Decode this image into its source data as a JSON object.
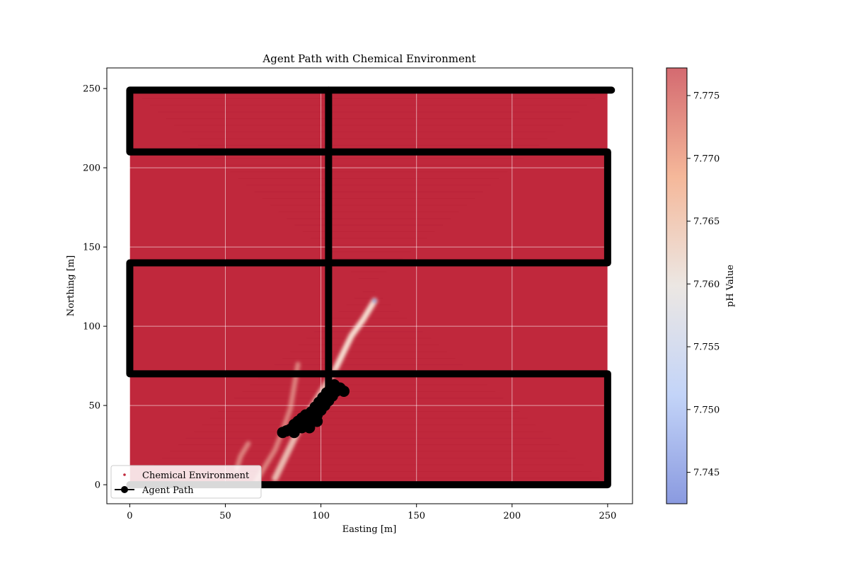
{
  "chart_data": {
    "type": "scatter",
    "title": "Agent Path with Chemical Environment",
    "xlabel": "Easting [m]",
    "ylabel": "Northing [m]",
    "xlim": [
      -12,
      263
    ],
    "ylim": [
      -12,
      263
    ],
    "xticks": [
      0,
      50,
      100,
      150,
      200,
      250
    ],
    "yticks": [
      0,
      50,
      100,
      150,
      200,
      250
    ],
    "grid": true,
    "legend_position": "lower-left",
    "background_color": "#c0283c",
    "environment": {
      "name": "Chemical Environment",
      "grid_extent": {
        "x": [
          0,
          250
        ],
        "y": [
          0,
          250
        ]
      },
      "plume": {
        "source": [
          128,
          116
        ],
        "spine": [
          [
            128,
            116
          ],
          [
            122,
            104
          ],
          [
            116,
            94
          ],
          [
            112,
            84
          ],
          [
            108,
            74
          ],
          [
            104,
            66
          ],
          [
            100,
            58
          ],
          [
            96,
            50
          ],
          [
            92,
            42
          ],
          [
            88,
            34
          ],
          [
            84,
            24
          ],
          [
            80,
            14
          ],
          [
            76,
            4
          ]
        ],
        "secondary_branches": [
          [
            [
              88,
              76
            ],
            [
              86,
              62
            ],
            [
              84,
              48
            ],
            [
              80,
              34
            ],
            [
              76,
              22
            ],
            [
              70,
              10
            ],
            [
              66,
              2
            ]
          ],
          [
            [
              62,
              26
            ],
            [
              58,
              18
            ],
            [
              56,
              10
            ]
          ]
        ]
      }
    },
    "agent_path": {
      "name": "Agent Path",
      "color": "#000000",
      "lawnmower": [
        [
          0,
          0
        ],
        [
          250,
          0
        ],
        [
          250,
          70
        ],
        [
          0,
          70
        ],
        [
          0,
          140
        ],
        [
          250,
          140
        ],
        [
          250,
          210
        ],
        [
          0,
          210
        ],
        [
          0,
          249
        ],
        [
          252,
          249
        ]
      ],
      "vertical_transect": [
        [
          104,
          249
        ],
        [
          104,
          62
        ]
      ],
      "plume_cluster": [
        [
          80,
          33
        ],
        [
          82,
          34
        ],
        [
          84,
          35
        ],
        [
          86,
          38
        ],
        [
          88,
          40
        ],
        [
          90,
          42
        ],
        [
          91,
          38
        ],
        [
          92,
          44
        ],
        [
          94,
          40
        ],
        [
          95,
          46
        ],
        [
          96,
          42
        ],
        [
          97,
          49
        ],
        [
          98,
          44
        ],
        [
          99,
          52
        ],
        [
          100,
          47
        ],
        [
          101,
          55
        ],
        [
          102,
          50
        ],
        [
          103,
          58
        ],
        [
          104,
          53
        ],
        [
          105,
          61
        ],
        [
          106,
          56
        ],
        [
          107,
          63
        ],
        [
          108,
          59
        ],
        [
          110,
          61
        ],
        [
          112,
          59
        ],
        [
          94,
          36
        ],
        [
          90,
          36
        ],
        [
          86,
          33
        ],
        [
          98,
          40
        ]
      ]
    },
    "colorbar": {
      "label": "pH Value",
      "min": 7.7425,
      "max": 7.7772,
      "ticks": [
        "7.745",
        "7.750",
        "7.755",
        "7.760",
        "7.765",
        "7.770",
        "7.775"
      ],
      "tick_values": [
        7.745,
        7.75,
        7.755,
        7.76,
        7.765,
        7.77,
        7.775
      ],
      "colormap": "coolwarm"
    },
    "legend": [
      {
        "label": "Chemical Environment",
        "marker": "point",
        "color": "#c0283c"
      },
      {
        "label": "Agent Path",
        "marker": "line-dot",
        "color": "#000000"
      }
    ]
  }
}
